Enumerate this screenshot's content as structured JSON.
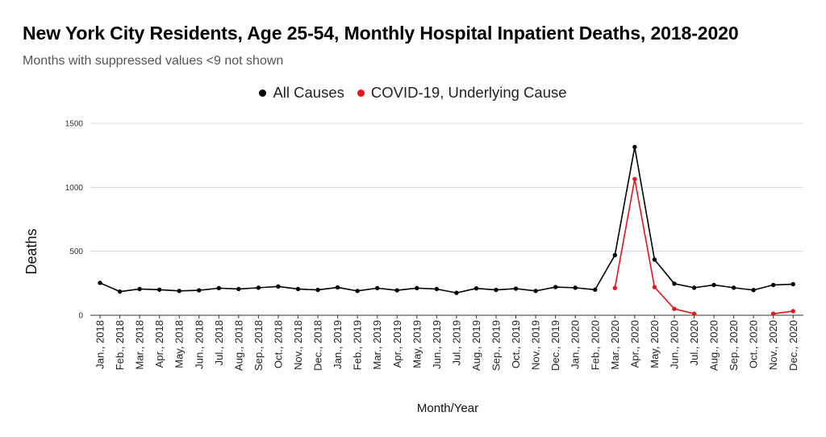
{
  "header": {
    "title": "New York City Residents, Age 25-54, Monthly Hospital Inpatient Deaths, 2018-2020",
    "subtitle": "Months with suppressed values <9 not shown"
  },
  "chart_data": {
    "type": "line",
    "title": "New York City Residents, Age 25-54, Monthly Hospital Inpatient Deaths, 2018-2020",
    "subtitle": "Months with suppressed values <9 not shown",
    "xlabel": "Month/Year",
    "ylabel": "Deaths",
    "ylim": [
      0,
      1500
    ],
    "yticks": [
      0,
      500,
      1000,
      1500
    ],
    "grid": true,
    "legend_position": "top-center",
    "categories": [
      "Jan., 2018",
      "Feb., 2018",
      "Mar., 2018",
      "Apr., 2018",
      "May, 2018",
      "Jun., 2018",
      "Jul., 2018",
      "Aug., 2018",
      "Sep., 2018",
      "Oct., 2018",
      "Nov., 2018",
      "Dec., 2018",
      "Jan., 2019",
      "Feb., 2019",
      "Mar., 2019",
      "Apr., 2019",
      "May, 2019",
      "Jun., 2019",
      "Jul., 2019",
      "Aug., 2019",
      "Sep., 2019",
      "Oct., 2019",
      "Nov., 2019",
      "Dec., 2019",
      "Jan., 2020",
      "Feb., 2020",
      "Mar., 2020",
      "Apr., 2020",
      "May, 2020",
      "Jun., 2020",
      "Jul., 2020",
      "Aug., 2020",
      "Sep., 2020",
      "Oct., 2020",
      "Nov., 2020",
      "Dec., 2020"
    ],
    "series": [
      {
        "name": "All Causes",
        "color": "#000000",
        "values": [
          253,
          185,
          205,
          200,
          190,
          195,
          212,
          205,
          215,
          225,
          205,
          198,
          218,
          190,
          212,
          195,
          212,
          205,
          175,
          210,
          198,
          208,
          190,
          220,
          215,
          200,
          470,
          1315,
          435,
          247,
          215,
          237,
          215,
          197,
          237,
          243
        ]
      },
      {
        "name": "COVID-19, Underlying Cause",
        "color": "#e8141a",
        "values": [
          null,
          null,
          null,
          null,
          null,
          null,
          null,
          null,
          null,
          null,
          null,
          null,
          null,
          null,
          null,
          null,
          null,
          null,
          null,
          null,
          null,
          null,
          null,
          null,
          null,
          null,
          213,
          1065,
          220,
          50,
          12,
          null,
          null,
          null,
          12,
          32
        ]
      }
    ]
  }
}
